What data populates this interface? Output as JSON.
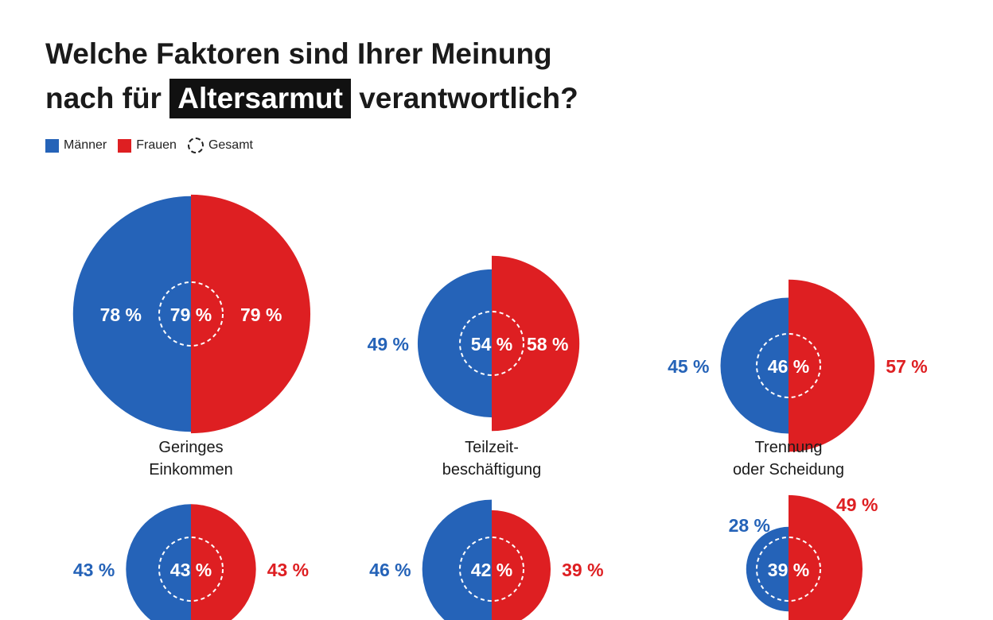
{
  "title": {
    "line1": "Welche Faktoren sind Ihrer Meinung",
    "line2_pre": "nach für",
    "highlight": "Altersarmut",
    "line2_post": "verantwortlich?"
  },
  "legend": [
    {
      "label": "Männer",
      "color": "#2563b8"
    },
    {
      "label": "Frauen",
      "color": "#de1f22"
    },
    {
      "label": "Gesamt",
      "style": "dashed-circle"
    }
  ],
  "chart_data": {
    "type": "semicircle-pairs",
    "unit": "%",
    "colors": {
      "Männer": "#2563b8",
      "Frauen": "#de1f22"
    },
    "items": [
      {
        "label": [
          "Geringes",
          "Einkommen"
        ],
        "maenner": 78,
        "frauen": 79,
        "gesamt": 79
      },
      {
        "label": [
          "Teilzeit-",
          "beschäftigung"
        ],
        "maenner": 49,
        "frauen": 58,
        "gesamt": 54
      },
      {
        "label": [
          "Trennung",
          "oder Scheidung"
        ],
        "maenner": 45,
        "frauen": 57,
        "gesamt": 46
      },
      {
        "label": [
          "",
          ""
        ],
        "maenner": 43,
        "frauen": 43,
        "gesamt": 43
      },
      {
        "label": [
          "",
          ""
        ],
        "maenner": 46,
        "frauen": 39,
        "gesamt": 42
      },
      {
        "label": [
          "",
          ""
        ],
        "maenner": 28,
        "frauen": 49,
        "gesamt": 39
      }
    ]
  }
}
